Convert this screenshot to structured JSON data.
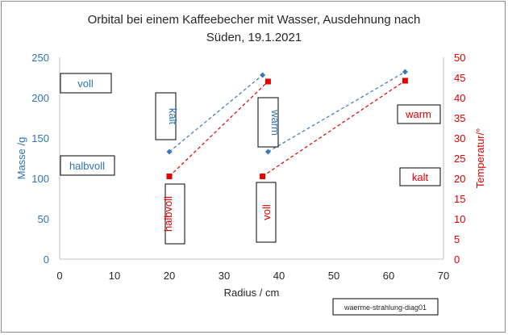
{
  "chart_data": {
    "type": "scatter",
    "title_line1": "Orbital bei einem Kaffeebecher mit Wasser, Ausdehnung nach",
    "title_line2": "Süden, 19.1.2021",
    "xlabel": "Radius / cm",
    "ylabel_left": "Masse /g",
    "ylabel_right": "Temperatur/°",
    "xlim": [
      0,
      70
    ],
    "ylim_left": [
      0,
      250
    ],
    "ylim_right": [
      0,
      50
    ],
    "x_ticks": [
      "0",
      "10",
      "20",
      "30",
      "40",
      "50",
      "60",
      "70"
    ],
    "y_ticks_left": [
      "0",
      "50",
      "100",
      "150",
      "200",
      "250"
    ],
    "y_ticks_right": [
      "0",
      "5",
      "10",
      "15",
      "20",
      "25",
      "30",
      "35",
      "40",
      "45",
      "50"
    ],
    "series": [
      {
        "name": "Masse",
        "axis": "left",
        "color": "#3a78b8",
        "marker": "diamond",
        "segments": [
          [
            {
              "x": 20,
              "y": 133
            },
            {
              "x": 37,
              "y": 228
            }
          ],
          [
            {
              "x": 38,
              "y": 133
            },
            {
              "x": 63,
              "y": 232
            }
          ]
        ]
      },
      {
        "name": "Temperatur",
        "axis": "right",
        "color": "#e00000",
        "marker": "square",
        "segments": [
          [
            {
              "x": 20,
              "y": 20.5
            },
            {
              "x": 38,
              "y": 44
            }
          ],
          [
            {
              "x": 37,
              "y": 20.5
            },
            {
              "x": 63,
              "y": 44.2
            }
          ]
        ]
      }
    ],
    "annotations": [
      {
        "id": "voll-blue",
        "text": "voll",
        "color": "#2e74b5",
        "orientation": "horizontal"
      },
      {
        "id": "halbvoll-blue",
        "text": "halbvoll",
        "color": "#2e74b5",
        "orientation": "horizontal"
      },
      {
        "id": "kalt-blue",
        "text": "kalt",
        "color": "#2e74b5",
        "orientation": "vertical"
      },
      {
        "id": "warm-blue",
        "text": "warm",
        "color": "#2e74b5",
        "orientation": "vertical"
      },
      {
        "id": "halbvoll-red",
        "text": "halbvoll",
        "color": "#e00000",
        "orientation": "vertical"
      },
      {
        "id": "voll-red",
        "text": "voll",
        "color": "#e00000",
        "orientation": "vertical"
      },
      {
        "id": "warm-red",
        "text": "warm",
        "color": "#e00000",
        "orientation": "horizontal"
      },
      {
        "id": "kalt-red",
        "text": "kalt",
        "color": "#e00000",
        "orientation": "horizontal"
      }
    ],
    "footnote": "waerme-strahlung-diag01"
  }
}
